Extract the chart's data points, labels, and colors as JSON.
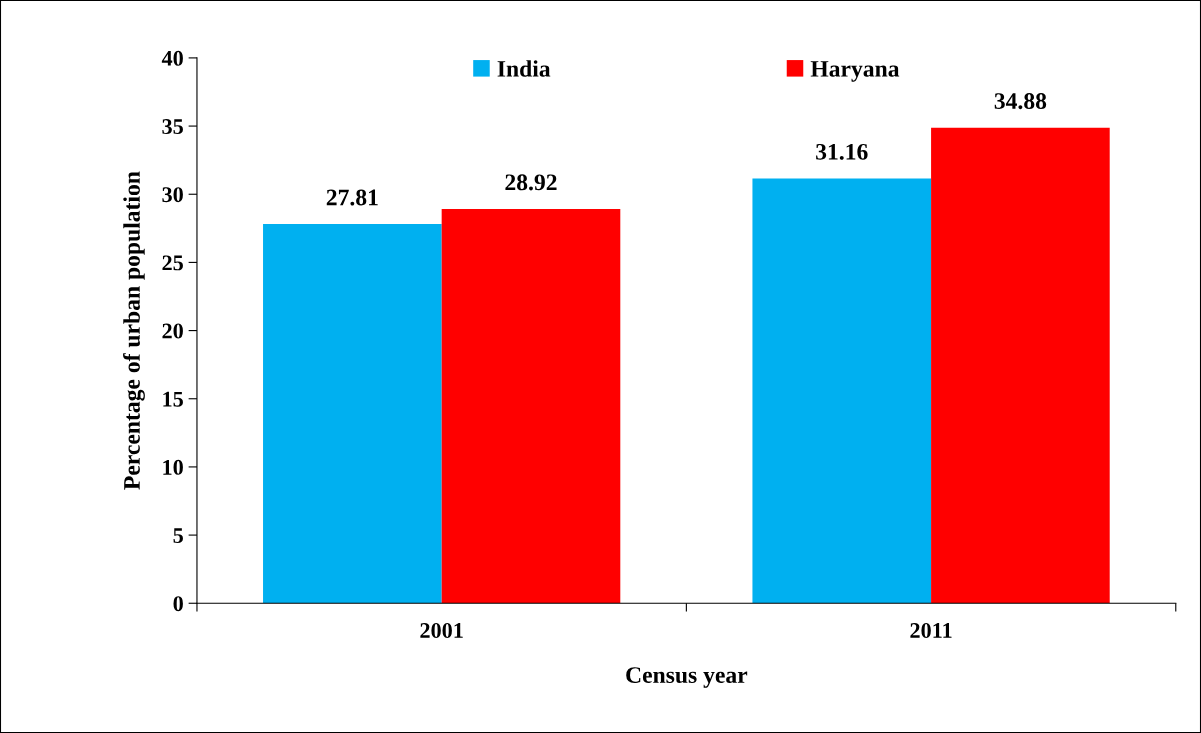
{
  "chart_data": {
    "type": "bar",
    "xlabel": "Census year",
    "ylabel": "Percentage of urban population",
    "categories": [
      "2001",
      "2011"
    ],
    "series": [
      {
        "name": "India",
        "color": "#00b0f0",
        "values": [
          27.81,
          31.16
        ]
      },
      {
        "name": "Haryana",
        "color": "#ff0000",
        "values": [
          28.92,
          34.88
        ]
      }
    ],
    "ylim": [
      0,
      40
    ],
    "yticks": [
      0,
      5,
      10,
      15,
      20,
      25,
      30,
      35,
      40
    ],
    "grid": false,
    "legend": "top",
    "data_labels": true
  }
}
